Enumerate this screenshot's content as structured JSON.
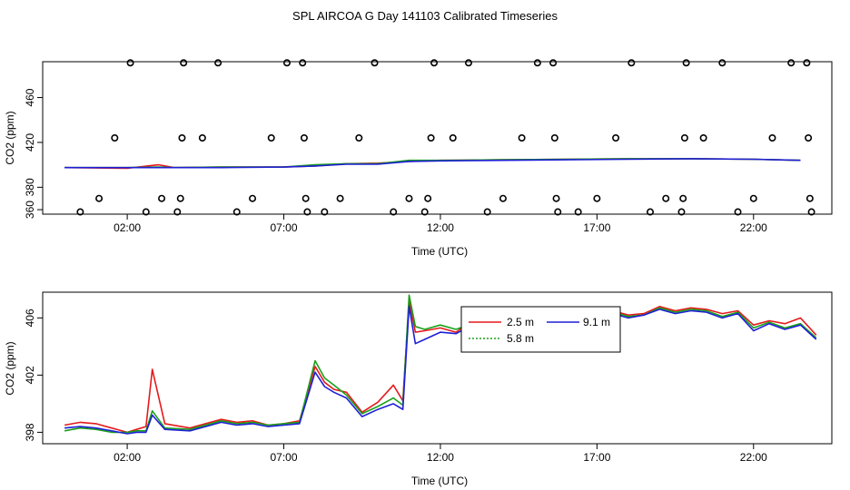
{
  "title": "SPL AIRCOA G  Day 141103  Calibrated Timeseries",
  "colors": {
    "h2_5": "#e41a1c",
    "h5_8": "#1aa01a",
    "h9_1": "#1f1fd6",
    "axis": "#000000"
  },
  "chart_data": [
    {
      "type": "scatter",
      "xlabel": "Time (UTC)",
      "ylabel": "CO2 (ppm)",
      "x_ticks": [
        "02:00",
        "07:00",
        "12:00",
        "17:00",
        "22:00"
      ],
      "x_tick_hours": [
        2,
        7,
        12,
        17,
        22
      ],
      "y_ticks": [
        360,
        380,
        420,
        460
      ],
      "xlim": [
        -0.7,
        24.5
      ],
      "ylim": [
        356,
        492
      ],
      "markers": [
        {
          "x": 0.5,
          "y": 358
        },
        {
          "x": 1.1,
          "y": 370
        },
        {
          "x": 1.6,
          "y": 424
        },
        {
          "x": 2.1,
          "y": 491
        },
        {
          "x": 2.6,
          "y": 358
        },
        {
          "x": 3.1,
          "y": 370
        },
        {
          "x": 3.6,
          "y": 358
        },
        {
          "x": 3.7,
          "y": 370
        },
        {
          "x": 3.75,
          "y": 424
        },
        {
          "x": 3.8,
          "y": 491
        },
        {
          "x": 4.4,
          "y": 424
        },
        {
          "x": 4.9,
          "y": 491
        },
        {
          "x": 5.5,
          "y": 358
        },
        {
          "x": 6.0,
          "y": 370
        },
        {
          "x": 6.6,
          "y": 424
        },
        {
          "x": 7.1,
          "y": 491
        },
        {
          "x": 7.6,
          "y": 491
        },
        {
          "x": 7.65,
          "y": 424
        },
        {
          "x": 7.7,
          "y": 370
        },
        {
          "x": 7.75,
          "y": 358
        },
        {
          "x": 8.3,
          "y": 358
        },
        {
          "x": 8.8,
          "y": 370
        },
        {
          "x": 9.4,
          "y": 424
        },
        {
          "x": 9.9,
          "y": 491
        },
        {
          "x": 10.5,
          "y": 358
        },
        {
          "x": 11.0,
          "y": 370
        },
        {
          "x": 11.5,
          "y": 358
        },
        {
          "x": 11.6,
          "y": 370
        },
        {
          "x": 11.7,
          "y": 424
        },
        {
          "x": 11.8,
          "y": 491
        },
        {
          "x": 12.4,
          "y": 424
        },
        {
          "x": 12.9,
          "y": 491
        },
        {
          "x": 13.5,
          "y": 358
        },
        {
          "x": 14.0,
          "y": 370
        },
        {
          "x": 14.6,
          "y": 424
        },
        {
          "x": 15.1,
          "y": 491
        },
        {
          "x": 15.6,
          "y": 491
        },
        {
          "x": 15.65,
          "y": 424
        },
        {
          "x": 15.7,
          "y": 370
        },
        {
          "x": 15.75,
          "y": 358
        },
        {
          "x": 16.4,
          "y": 358
        },
        {
          "x": 17.0,
          "y": 370
        },
        {
          "x": 17.6,
          "y": 424
        },
        {
          "x": 18.1,
          "y": 491
        },
        {
          "x": 18.7,
          "y": 358
        },
        {
          "x": 19.2,
          "y": 370
        },
        {
          "x": 19.7,
          "y": 358
        },
        {
          "x": 19.75,
          "y": 370
        },
        {
          "x": 19.8,
          "y": 424
        },
        {
          "x": 19.85,
          "y": 491
        },
        {
          "x": 20.4,
          "y": 424
        },
        {
          "x": 21.0,
          "y": 491
        },
        {
          "x": 21.5,
          "y": 358
        },
        {
          "x": 22.0,
          "y": 370
        },
        {
          "x": 22.6,
          "y": 424
        },
        {
          "x": 23.2,
          "y": 491
        },
        {
          "x": 23.7,
          "y": 491
        },
        {
          "x": 23.75,
          "y": 424
        },
        {
          "x": 23.8,
          "y": 370
        },
        {
          "x": 23.85,
          "y": 358
        }
      ],
      "lines": [
        {
          "color": "#e41a1c",
          "x": [
            0,
            2,
            3,
            3.5,
            5,
            7,
            8,
            9,
            10,
            11,
            12,
            14,
            16,
            18,
            20,
            22,
            23.5
          ],
          "y": [
            397.5,
            397,
            400,
            397.5,
            398,
            398,
            399,
            401,
            401.5,
            403,
            404,
            404.5,
            405,
            405.5,
            405.5,
            405,
            404
          ]
        },
        {
          "color": "#1aa01a",
          "x": [
            0,
            2,
            3,
            3.5,
            5,
            7,
            8,
            9,
            10,
            11,
            12,
            14,
            16,
            18,
            20,
            22,
            23.5
          ],
          "y": [
            397.5,
            397.5,
            398,
            397.5,
            398,
            398,
            400,
            401,
            401,
            404,
            404,
            404.5,
            405,
            405.5,
            405.5,
            405,
            404
          ]
        },
        {
          "color": "#1f1fd6",
          "x": [
            0,
            2,
            3,
            3.5,
            5,
            7,
            8,
            9,
            10,
            11,
            12,
            14,
            16,
            18,
            20,
            22,
            23.5
          ],
          "y": [
            397.5,
            397.5,
            397.5,
            397.5,
            397.5,
            398,
            399,
            400.5,
            400.5,
            403,
            403.5,
            404,
            404.5,
            405,
            405.5,
            405,
            404
          ]
        }
      ]
    },
    {
      "type": "line",
      "xlabel": "Time (UTC)",
      "ylabel": "CO2 (ppm)",
      "x_ticks": [
        "02:00",
        "07:00",
        "12:00",
        "17:00",
        "22:00"
      ],
      "x_tick_hours": [
        2,
        7,
        12,
        17,
        22
      ],
      "y_ticks": [
        398,
        402,
        406
      ],
      "xlim": [
        -0.7,
        24.5
      ],
      "ylim": [
        397.2,
        407.8
      ],
      "legend_position": "top-center",
      "legend": [
        {
          "label": "2.5 m",
          "color": "#e41a1c",
          "style": "solid"
        },
        {
          "label": "9.1 m",
          "color": "#1f1fd6",
          "style": "solid"
        },
        {
          "label": "5.8 m",
          "color": "#1aa01a",
          "style": "dotted"
        }
      ],
      "series": [
        {
          "name": "2.5 m",
          "color": "#e41a1c",
          "x": [
            0,
            0.5,
            1,
            1.5,
            2,
            2.3,
            2.6,
            2.8,
            3.2,
            4,
            5,
            5.5,
            6,
            6.5,
            7,
            7.5,
            8,
            8.3,
            8.6,
            9,
            9.5,
            10,
            10.5,
            10.8,
            11,
            11.2,
            11.5,
            12,
            12.5,
            13,
            13.5,
            14,
            14.5,
            15,
            15.5,
            16,
            16.5,
            17,
            17.5,
            18,
            18.5,
            19,
            19.5,
            20,
            20.5,
            21,
            21.5,
            22,
            22.5,
            23,
            23.5,
            24
          ],
          "y": [
            398.5,
            398.7,
            398.6,
            398.3,
            398.0,
            398.2,
            398.4,
            402.4,
            398.6,
            398.3,
            398.9,
            398.7,
            398.8,
            398.5,
            398.6,
            398.8,
            402.6,
            401.5,
            401.0,
            400.8,
            399.4,
            400.1,
            401.3,
            400.2,
            407.2,
            405.0,
            405.1,
            405.3,
            405.0,
            405.8,
            405.9,
            405.6,
            406.2,
            405.7,
            405.8,
            406.1,
            405.9,
            406.3,
            406.5,
            406.2,
            406.3,
            406.8,
            406.5,
            406.7,
            406.6,
            406.3,
            406.5,
            405.5,
            405.8,
            405.6,
            406.0,
            404.8
          ]
        },
        {
          "name": "5.8 m",
          "color": "#1aa01a",
          "x": [
            0,
            0.5,
            1,
            1.5,
            2,
            2.3,
            2.6,
            2.8,
            3.2,
            4,
            5,
            5.5,
            6,
            6.5,
            7,
            7.5,
            8,
            8.3,
            8.6,
            9,
            9.5,
            10,
            10.5,
            10.8,
            11,
            11.2,
            11.5,
            12,
            12.5,
            13,
            13.5,
            14,
            14.5,
            15,
            15.5,
            16,
            16.5,
            17,
            17.5,
            18,
            18.5,
            19,
            19.5,
            20,
            20.5,
            21,
            21.5,
            22,
            22.5,
            23,
            23.5,
            24
          ],
          "y": [
            398.1,
            398.3,
            398.2,
            398.0,
            398.0,
            398.1,
            398.1,
            399.5,
            398.3,
            398.2,
            398.8,
            398.6,
            398.7,
            398.5,
            398.6,
            398.7,
            403.0,
            401.8,
            401.3,
            400.6,
            399.3,
            399.8,
            400.4,
            399.9,
            407.6,
            405.4,
            405.2,
            405.5,
            405.2,
            405.6,
            405.8,
            405.5,
            406.0,
            405.6,
            405.7,
            406.0,
            405.8,
            406.1,
            406.4,
            406.1,
            406.2,
            406.7,
            406.4,
            406.6,
            406.5,
            406.1,
            406.4,
            405.3,
            405.7,
            405.3,
            405.6,
            404.6
          ]
        },
        {
          "name": "9.1 m",
          "color": "#1f1fd6",
          "x": [
            0,
            0.5,
            1,
            1.5,
            2,
            2.3,
            2.6,
            2.8,
            3.2,
            4,
            5,
            5.5,
            6,
            6.5,
            7,
            7.5,
            8,
            8.3,
            8.6,
            9,
            9.5,
            10,
            10.5,
            10.8,
            11,
            11.2,
            11.5,
            12,
            12.5,
            13,
            13.5,
            14,
            14.5,
            15,
            15.5,
            16,
            16.5,
            17,
            17.5,
            18,
            18.5,
            19,
            19.5,
            20,
            20.5,
            21,
            21.5,
            22,
            22.5,
            23,
            23.5,
            24
          ],
          "y": [
            398.3,
            398.4,
            398.3,
            398.1,
            397.9,
            398.0,
            398.0,
            399.2,
            398.2,
            398.1,
            398.7,
            398.5,
            398.6,
            398.4,
            398.5,
            398.6,
            402.2,
            401.2,
            400.8,
            400.4,
            399.1,
            399.6,
            400.0,
            399.6,
            406.8,
            404.2,
            404.5,
            405.0,
            404.9,
            405.5,
            405.7,
            405.3,
            405.9,
            405.4,
            405.6,
            405.9,
            405.6,
            406.0,
            406.3,
            406.0,
            406.2,
            406.6,
            406.3,
            406.5,
            406.4,
            406.0,
            406.3,
            405.1,
            405.6,
            405.2,
            405.5,
            404.5
          ]
        }
      ]
    }
  ]
}
